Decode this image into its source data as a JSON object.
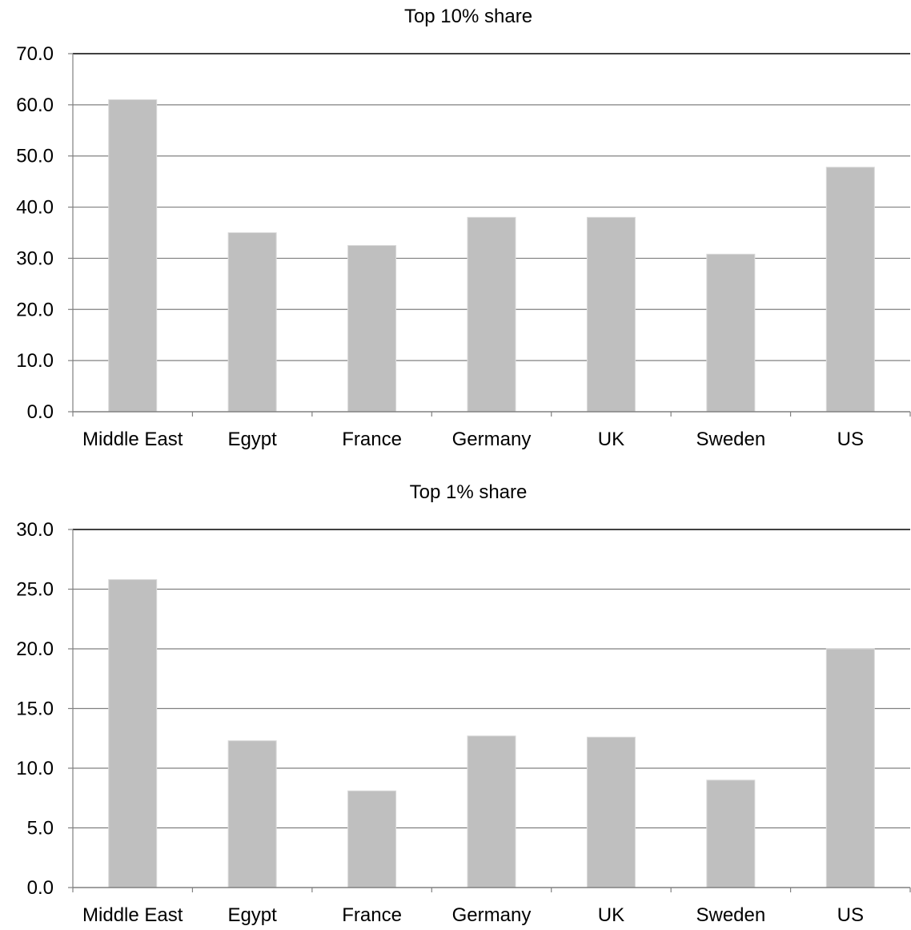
{
  "colors": {
    "bar": "#bfbfbf",
    "bar_edge": "#d9d9d9",
    "grid": "#808080",
    "axis": "#808080",
    "top_line": "#000000",
    "text": "#000000"
  },
  "chart_data": [
    {
      "type": "bar",
      "title": "Top 10% share",
      "categories": [
        "Middle East",
        "Egypt",
        "France",
        "Germany",
        "UK",
        "Sweden",
        "US"
      ],
      "values": [
        61.0,
        35.0,
        32.5,
        38.0,
        38.0,
        30.8,
        47.8
      ],
      "xlabel": "",
      "ylabel": "",
      "ylim": [
        0,
        70
      ],
      "yticks": [
        "0.0",
        "10.0",
        "20.0",
        "30.0",
        "40.0",
        "50.0",
        "60.0",
        "70.0"
      ],
      "grid": true,
      "legend": "none"
    },
    {
      "type": "bar",
      "title": "Top 1% share",
      "categories": [
        "Middle East",
        "Egypt",
        "France",
        "Germany",
        "UK",
        "Sweden",
        "US"
      ],
      "values": [
        25.8,
        12.3,
        8.1,
        12.7,
        12.6,
        9.0,
        20.0
      ],
      "xlabel": "",
      "ylabel": "",
      "ylim": [
        0,
        30
      ],
      "yticks": [
        "0.0",
        "5.0",
        "10.0",
        "15.0",
        "20.0",
        "25.0",
        "30.0"
      ],
      "grid": true,
      "legend": "none"
    }
  ]
}
